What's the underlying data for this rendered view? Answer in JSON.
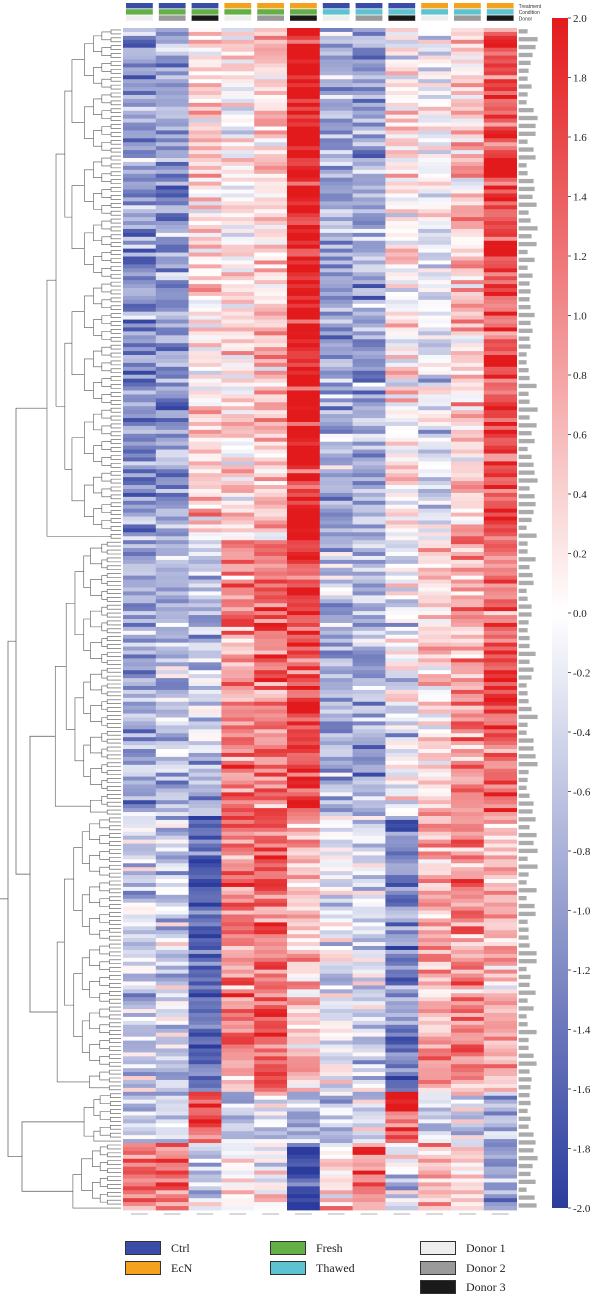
{
  "chart_data": {
    "type": "heatmap",
    "title": "",
    "column_count": 12,
    "row_count": 300,
    "annotation_tracks": [
      {
        "name": "Treatment",
        "values": [
          "Ctrl",
          "Ctrl",
          "Ctrl",
          "EcN",
          "EcN",
          "EcN",
          "Ctrl",
          "Ctrl",
          "Ctrl",
          "EcN",
          "EcN",
          "EcN"
        ]
      },
      {
        "name": "Condition",
        "values": [
          "Fresh",
          "Fresh",
          "Fresh",
          "Fresh",
          "Fresh",
          "Fresh",
          "Thawed",
          "Thawed",
          "Thawed",
          "Thawed",
          "Thawed",
          "Thawed"
        ]
      },
      {
        "name": "Donor",
        "values": [
          "Donor 1",
          "Donor 2",
          "Donor 3",
          "Donor 1",
          "Donor 2",
          "Donor 3",
          "Donor 1",
          "Donor 2",
          "Donor 3",
          "Donor 1",
          "Donor 2",
          "Donor 3"
        ]
      }
    ],
    "color_scale": {
      "min": -2.0,
      "max": 2.0,
      "low_color": "#2b3c9e",
      "mid_color": "#ffffff",
      "high_color": "#e31a1c",
      "ticks": [
        "2.0",
        "1.8",
        "1.6",
        "1.4",
        "1.2",
        "1.0",
        "0.8",
        "0.6",
        "0.4",
        "0.2",
        "0.0",
        "-0.2",
        "-0.4",
        "-0.6",
        "-0.8",
        "-1.0",
        "-1.2",
        "-1.4",
        "-1.6",
        "-1.8",
        "-2.0"
      ]
    },
    "cluster_blocks": [
      {
        "rows": 130,
        "column_means": [
          -1.1,
          -1.0,
          0.3,
          0.2,
          0.5,
          2.0,
          -0.9,
          -0.8,
          0.2,
          -0.2,
          0.5,
          1.6
        ]
      },
      {
        "rows": 70,
        "column_means": [
          -0.8,
          -0.7,
          -0.6,
          1.0,
          1.2,
          1.6,
          -0.8,
          -0.7,
          -0.3,
          0.3,
          0.8,
          1.3
        ]
      },
      {
        "rows": 70,
        "column_means": [
          -0.5,
          -0.5,
          -1.6,
          1.1,
          1.3,
          0.6,
          -0.2,
          -0.4,
          -1.2,
          0.6,
          1.0,
          0.6
        ]
      },
      {
        "rows": 13,
        "column_means": [
          -0.4,
          -0.3,
          1.5,
          -0.5,
          -0.3,
          -0.8,
          -0.5,
          -0.3,
          1.5,
          -0.6,
          -0.3,
          -0.8
        ]
      },
      {
        "rows": 17,
        "column_means": [
          1.3,
          1.1,
          -0.6,
          0.2,
          0.0,
          -1.8,
          0.3,
          1.1,
          -0.4,
          0.5,
          0.2,
          -1.0
        ]
      }
    ],
    "legend": {
      "placement": "bottom",
      "groups": [
        {
          "name": "Treatment",
          "items": [
            {
              "label": "Ctrl",
              "color": "#3a4ca8"
            },
            {
              "label": "EcN",
              "color": "#f4a21e"
            }
          ]
        },
        {
          "name": "Condition",
          "items": [
            {
              "label": "Fresh",
              "color": "#63b046"
            },
            {
              "label": "Thawed",
              "color": "#5ec3d0"
            }
          ]
        },
        {
          "name": "Donor",
          "items": [
            {
              "label": "Donor 1",
              "color": "#eeeeee"
            },
            {
              "label": "Donor 2",
              "color": "#9a9a9a"
            },
            {
              "label": "Donor 3",
              "color": "#1a1a1a"
            }
          ]
        }
      ]
    }
  }
}
